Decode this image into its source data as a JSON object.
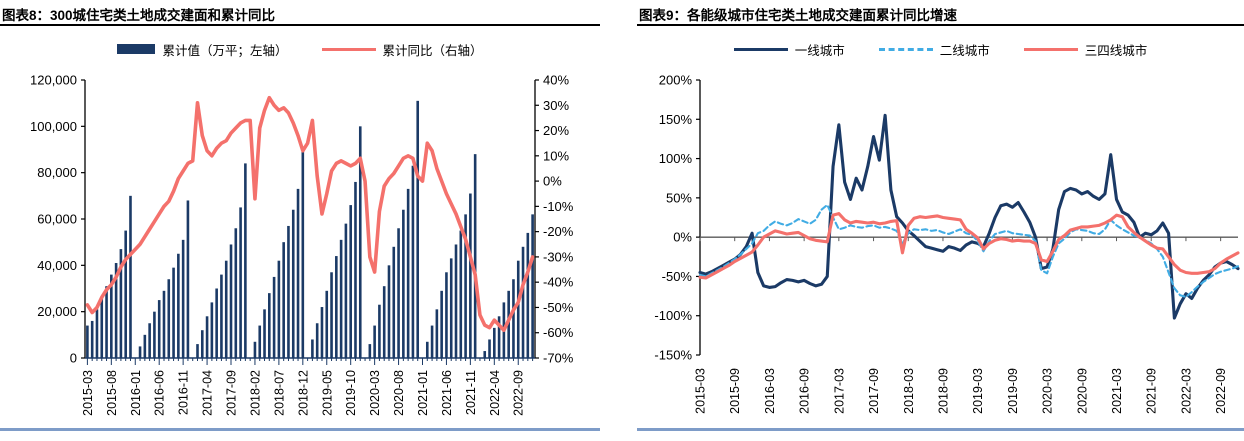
{
  "colors": {
    "navy": "#1b3a66",
    "salmon": "#f4716c",
    "sky_blue": "#41ace4",
    "zero_line": "#595959",
    "bottom_rule": "#7e9cc8",
    "axis": "#000000"
  },
  "chart_data": [
    {
      "id": "fig8",
      "type": "bar+line",
      "title": "图表8：300城住宅类土地成交建面和累计同比",
      "legend": [
        {
          "label": "累计值（万平；左轴）",
          "swatch": "bar",
          "color": "#1b3a66"
        },
        {
          "label": "累计同比（右轴）",
          "swatch": "line",
          "color": "#f4716c"
        }
      ],
      "start_month": "2015-03",
      "end_month": "2022-12",
      "x_tick_labels": [
        "2015-03",
        "2015-08",
        "2016-01",
        "2016-06",
        "2016-11",
        "2017-04",
        "2017-09",
        "2018-02",
        "2018-07",
        "2018-12",
        "2019-05",
        "2019-10",
        "2020-03",
        "2020-08",
        "2021-01",
        "2021-06",
        "2021-11",
        "2022-04",
        "2022-09"
      ],
      "x_tick_step_months": 5,
      "left_axis": {
        "name": "累计值（万平）",
        "min": 0,
        "max": 120000,
        "step": 20000
      },
      "right_axis": {
        "name": "累计同比",
        "min": -70,
        "max": 40,
        "step": 10,
        "unit": "%"
      },
      "grid": false,
      "bars_name": "累计值（万平；左轴）",
      "bars": [
        14000,
        16000,
        21000,
        26000,
        31000,
        36000,
        41000,
        47000,
        55000,
        70000,
        0,
        5000,
        10000,
        15000,
        20000,
        25000,
        29000,
        34000,
        39000,
        45000,
        51000,
        68000,
        0,
        6000,
        12000,
        18000,
        24000,
        30000,
        36000,
        42000,
        49000,
        56000,
        65000,
        84000,
        0,
        7000,
        14000,
        21000,
        28000,
        35000,
        42000,
        50000,
        57000,
        64000,
        73000,
        91000,
        0,
        8000,
        15000,
        22000,
        29000,
        37000,
        44000,
        51000,
        58000,
        66000,
        76000,
        100000,
        0,
        6000,
        14000,
        23000,
        31000,
        40000,
        48000,
        56000,
        64000,
        73000,
        83000,
        111000,
        0,
        7000,
        14000,
        21000,
        29000,
        37000,
        43000,
        49000,
        55000,
        62000,
        71000,
        88000,
        0,
        3000,
        8000,
        13000,
        18000,
        24000,
        29000,
        34000,
        42000,
        48000,
        54000,
        62000
      ],
      "line_name": "累计同比（右轴）",
      "line_pct": [
        -49,
        -52,
        -50,
        -46,
        -43,
        -41,
        -38,
        -34,
        -31,
        -29,
        -27,
        -25,
        -22,
        -19,
        -16,
        -13,
        -10,
        -8,
        -4,
        1,
        4,
        7,
        8,
        31,
        18,
        12,
        10,
        13,
        15,
        16,
        19,
        21,
        23,
        24,
        24,
        -7,
        21,
        28,
        33,
        30,
        28,
        29,
        27,
        23,
        18,
        12,
        15,
        24,
        2,
        -13,
        -5,
        4,
        7,
        8,
        7,
        6,
        7,
        9,
        0,
        -30,
        -36,
        -12,
        -2,
        1,
        3,
        6,
        9,
        10,
        9,
        2,
        0,
        15,
        12,
        5,
        0,
        -5,
        -9,
        -13,
        -18,
        -23,
        -30,
        -37,
        -53,
        -57,
        -58,
        -55,
        -57,
        -59,
        -55,
        -51,
        -48,
        -41,
        -36,
        -30
      ]
    },
    {
      "id": "fig9",
      "type": "line",
      "title": "图表9：各能级城市住宅类土地成交建面累计同比增速",
      "start_month": "2015-03",
      "end_month": "2022-12",
      "x_tick_labels": [
        "2015-03",
        "2015-09",
        "2016-03",
        "2016-09",
        "2017-03",
        "2017-09",
        "2018-03",
        "2018-09",
        "2019-03",
        "2019-09",
        "2020-03",
        "2020-09",
        "2021-03",
        "2021-09",
        "2022-03",
        "2022-09"
      ],
      "x_tick_step_months": 6,
      "y_axis": {
        "min": -150,
        "max": 200,
        "step": 50,
        "unit": "%"
      },
      "grid": false,
      "zero_line": true,
      "series": [
        {
          "name": "一线城市",
          "style": "solid",
          "color": "#1b3a66",
          "values": [
            -45,
            -47,
            -44,
            -40,
            -36,
            -32,
            -28,
            -22,
            -12,
            5,
            -45,
            -62,
            -64,
            -63,
            -58,
            -54,
            -55,
            -57,
            -55,
            -59,
            -62,
            -60,
            -50,
            90,
            143,
            70,
            48,
            75,
            60,
            90,
            128,
            98,
            155,
            60,
            26,
            18,
            8,
            2,
            -5,
            -12,
            -14,
            -16,
            -18,
            -12,
            -14,
            -17,
            -10,
            -6,
            -8,
            -12,
            5,
            25,
            40,
            42,
            38,
            44,
            32,
            19,
            0,
            -40,
            -38,
            -15,
            35,
            58,
            62,
            60,
            55,
            58,
            52,
            48,
            55,
            105,
            48,
            32,
            28,
            19,
            0,
            5,
            3,
            8,
            18,
            5,
            -103,
            -85,
            -72,
            -78,
            -65,
            -55,
            -48,
            -38,
            -33,
            -31,
            -35,
            -40
          ]
        },
        {
          "name": "二线城市",
          "style": "dashed",
          "color": "#41ace4",
          "values": [
            -48,
            -50,
            -46,
            -42,
            -38,
            -33,
            -28,
            -22,
            -15,
            -8,
            5,
            8,
            15,
            20,
            17,
            15,
            18,
            23,
            20,
            17,
            22,
            35,
            41,
            25,
            10,
            12,
            15,
            13,
            12,
            14,
            15,
            12,
            13,
            11,
            8,
            -8,
            5,
            10,
            9,
            10,
            8,
            9,
            6,
            4,
            7,
            10,
            5,
            3,
            -5,
            -18,
            -5,
            4,
            6,
            8,
            5,
            4,
            3,
            2,
            -5,
            -42,
            -46,
            -25,
            -8,
            -2,
            6,
            10,
            9,
            8,
            5,
            4,
            10,
            22,
            15,
            10,
            6,
            2,
            0,
            -4,
            -8,
            -15,
            -25,
            -45,
            -65,
            -74,
            -76,
            -70,
            -63,
            -57,
            -52,
            -47,
            -44,
            -42,
            -40,
            -37
          ]
        },
        {
          "name": "三四线城市",
          "style": "solid",
          "color": "#f4716c",
          "values": [
            -51,
            -52,
            -48,
            -44,
            -40,
            -36,
            -31,
            -27,
            -23,
            -19,
            -10,
            0,
            4,
            8,
            6,
            4,
            5,
            6,
            2,
            -2,
            -4,
            -5,
            -6,
            28,
            30,
            22,
            18,
            20,
            19,
            18,
            19,
            17,
            18,
            20,
            21,
            -20,
            15,
            24,
            26,
            25,
            26,
            27,
            25,
            24,
            23,
            22,
            10,
            5,
            -1,
            -15,
            -8,
            -4,
            -2,
            -3,
            -5,
            -4,
            -5,
            -5,
            -8,
            -29,
            -31,
            -18,
            -3,
            2,
            9,
            11,
            13,
            13,
            14,
            15,
            18,
            22,
            28,
            26,
            13,
            6,
            0,
            -5,
            -10,
            -14,
            -15,
            -25,
            -35,
            -42,
            -45,
            -46,
            -46,
            -45,
            -44,
            -40,
            -33,
            -28,
            -24,
            -20
          ]
        }
      ]
    }
  ]
}
